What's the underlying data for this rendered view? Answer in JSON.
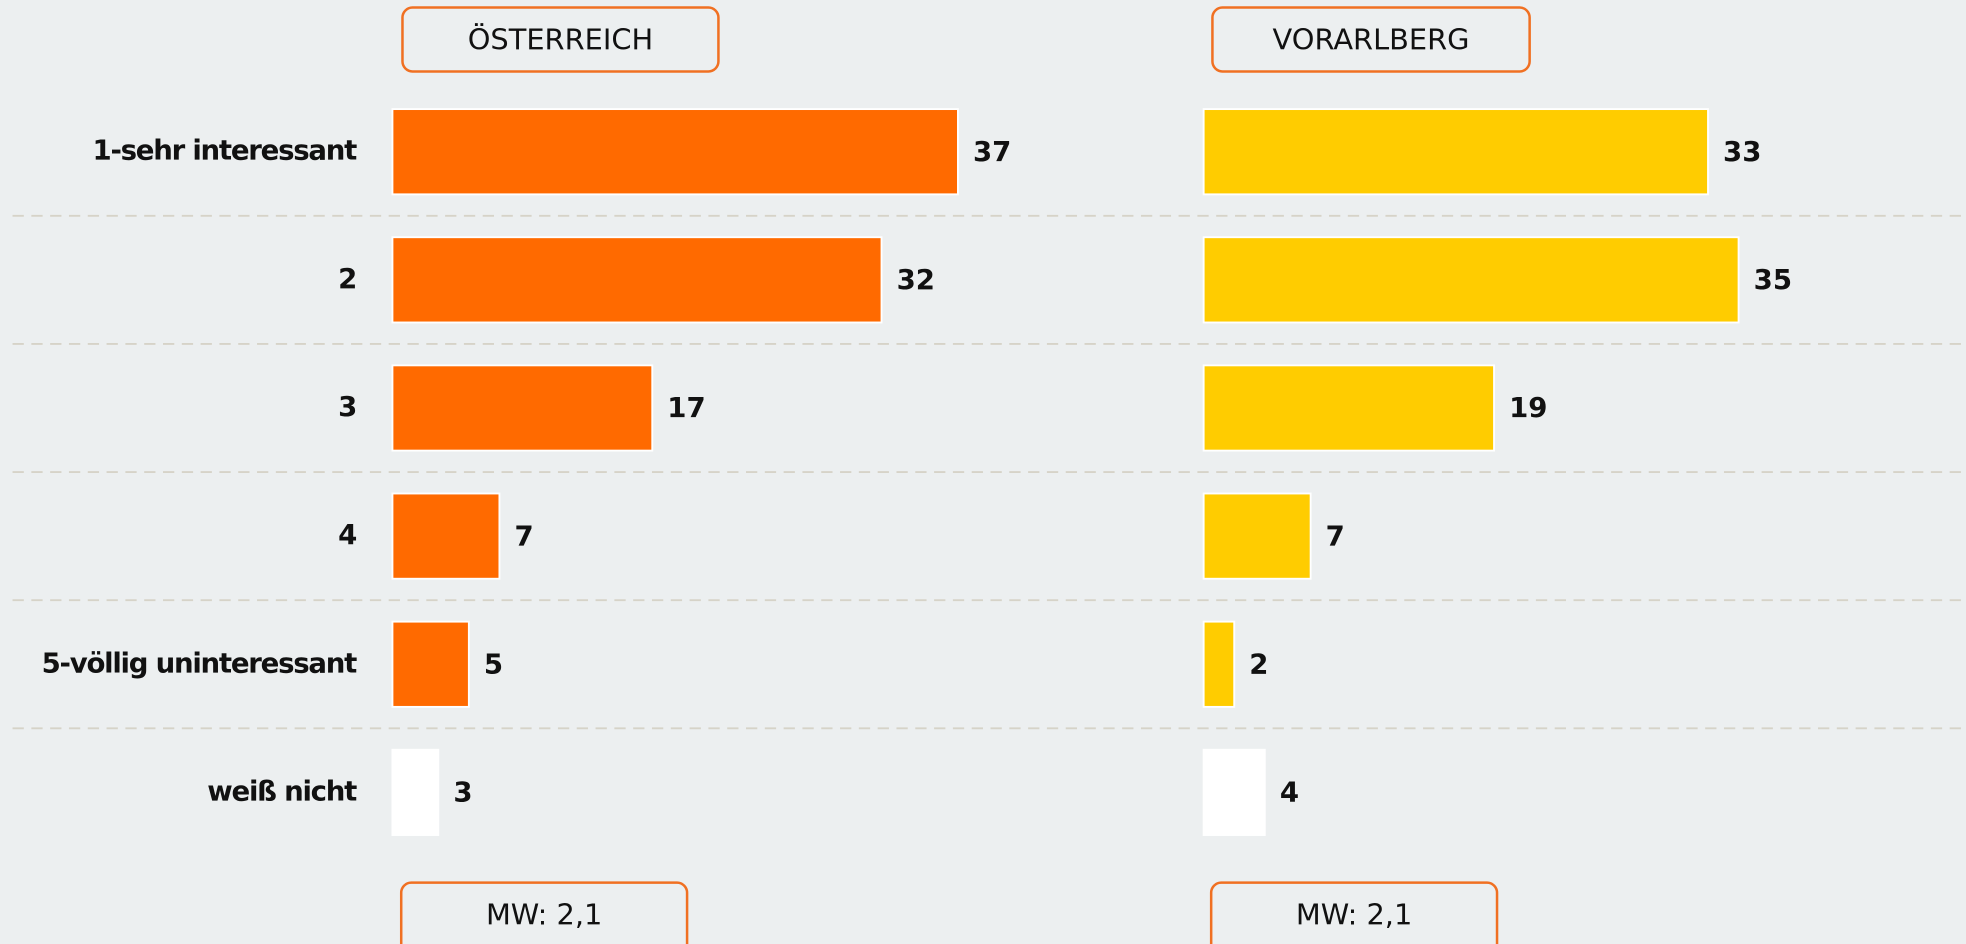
{
  "chart_data": [
    {
      "type": "bar",
      "orientation": "horizontal",
      "title": "ÖSTERREICH",
      "categories": [
        "1-sehr interessant",
        "2",
        "3",
        "4",
        "5-völlig uninteressant",
        "weiß nicht"
      ],
      "values": [
        37,
        32,
        17,
        7,
        5,
        3
      ],
      "colors": [
        "#ff6a00",
        "#ff6a00",
        "#ff6a00",
        "#ff6a00",
        "#ff6a00",
        "#ffffff"
      ],
      "footer": "MW: 2,1",
      "grid": true
    },
    {
      "type": "bar",
      "orientation": "horizontal",
      "title": "VORARLBERG",
      "values": [
        33,
        35,
        19,
        7,
        2,
        4
      ],
      "colors": [
        "#ffcc00",
        "#ffcc00",
        "#ffcc00",
        "#ffcc00",
        "#ffcc00",
        "#ffffff"
      ],
      "footer": "MW: 2,1"
    }
  ]
}
